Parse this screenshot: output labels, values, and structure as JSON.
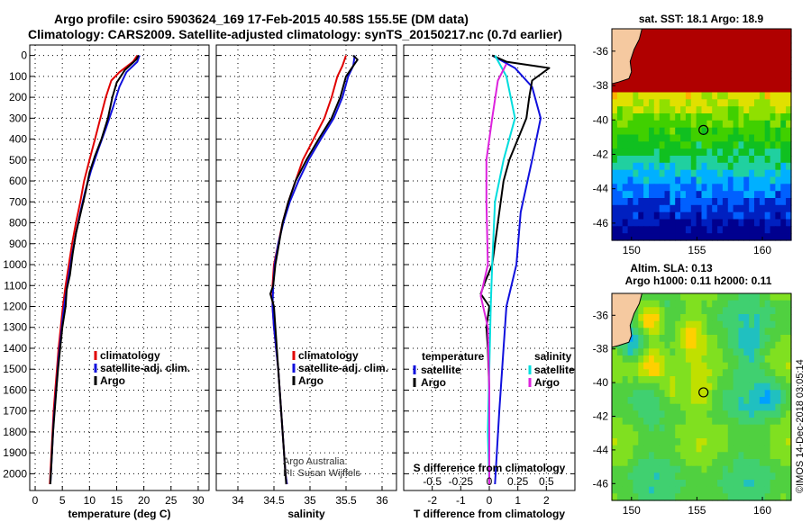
{
  "header": {
    "line1": "Argo profile: csiro 5903624_169 17-Feb-2015 40.58S 155.5E (DM data)",
    "line2": "Climatology: CARS2009. Satellite-adjusted climatology: synTS_20150217.nc (0.7d earlier)"
  },
  "colors": {
    "climatology": "#e00000",
    "satellite": "#1010dd",
    "argo": "#000000",
    "sat_salinity": "#00dddd",
    "argo_salinity": "#dd22dd"
  },
  "chart_data": [
    {
      "type": "line",
      "id": "temperature",
      "xlabel": "temperature (deg C)",
      "ylabel": "",
      "xlim": [
        -1,
        32
      ],
      "ylim": [
        2080,
        0
      ],
      "xticks": [
        0,
        5,
        10,
        15,
        20,
        25,
        30
      ],
      "yticks": [
        0,
        100,
        200,
        300,
        400,
        500,
        600,
        700,
        800,
        900,
        1000,
        1100,
        1200,
        1300,
        1400,
        1500,
        1600,
        1700,
        1800,
        1900,
        2000
      ],
      "grid": true,
      "legend": {
        "placement": "center-right",
        "entries": [
          "climatology",
          "satellite-adj. clim.",
          "Argo"
        ]
      },
      "series": [
        {
          "name": "climatology",
          "color": "#e00000",
          "points": [
            [
              18.8,
              0
            ],
            [
              18,
              30
            ],
            [
              15.5,
              80
            ],
            [
              14,
              120
            ],
            [
              13,
              200
            ],
            [
              12,
              300
            ],
            [
              11,
              400
            ],
            [
              10,
              500
            ],
            [
              9,
              600
            ],
            [
              8.3,
              700
            ],
            [
              7.5,
              800
            ],
            [
              6.8,
              900
            ],
            [
              6.2,
              1000
            ],
            [
              5.6,
              1100
            ],
            [
              5.1,
              1200
            ],
            [
              4.7,
              1300
            ],
            [
              4.3,
              1400
            ],
            [
              4,
              1500
            ],
            [
              3.7,
              1600
            ],
            [
              3.4,
              1700
            ],
            [
              3.2,
              1800
            ],
            [
              3,
              1900
            ],
            [
              2.8,
              2000
            ],
            [
              2.7,
              2050
            ]
          ]
        },
        {
          "name": "satellite-adj. clim.",
          "color": "#1010dd",
          "points": [
            [
              19.2,
              0
            ],
            [
              18.8,
              30
            ],
            [
              16.8,
              80
            ],
            [
              15.5,
              150
            ],
            [
              14.3,
              250
            ],
            [
              13,
              350
            ],
            [
              11.6,
              450
            ],
            [
              10.3,
              550
            ],
            [
              9.2,
              650
            ],
            [
              8.3,
              750
            ],
            [
              7.5,
              850
            ],
            [
              6.8,
              950
            ],
            [
              6.2,
              1050
            ],
            [
              5.6,
              1150
            ],
            [
              5.1,
              1250
            ],
            [
              4.7,
              1350
            ],
            [
              4.3,
              1450
            ],
            [
              4,
              1550
            ],
            [
              3.7,
              1650
            ],
            [
              3.4,
              1750
            ],
            [
              3.2,
              1850
            ],
            [
              3,
              1950
            ],
            [
              2.8,
              2050
            ]
          ]
        },
        {
          "name": "Argo",
          "color": "#000000",
          "points": [
            [
              19,
              0
            ],
            [
              18.6,
              20
            ],
            [
              16.5,
              70
            ],
            [
              15,
              130
            ],
            [
              14.2,
              200
            ],
            [
              13.4,
              300
            ],
            [
              12.2,
              400
            ],
            [
              11,
              480
            ],
            [
              10,
              560
            ],
            [
              9.3,
              650
            ],
            [
              8.4,
              750
            ],
            [
              7.5,
              850
            ],
            [
              6.9,
              950
            ],
            [
              6.4,
              1050
            ],
            [
              5.8,
              1120
            ],
            [
              5.6,
              1200
            ],
            [
              5,
              1300
            ],
            [
              4.6,
              1400
            ],
            [
              4.2,
              1500
            ],
            [
              3.9,
              1600
            ],
            [
              3.6,
              1700
            ],
            [
              3.3,
              1800
            ],
            [
              3.1,
              1900
            ],
            [
              2.9,
              2000
            ],
            [
              2.8,
              2050
            ]
          ]
        }
      ]
    },
    {
      "type": "line",
      "id": "salinity",
      "xlabel": "salinity",
      "ylabel": "",
      "xlim": [
        33.7,
        36.2
      ],
      "ylim": [
        2080,
        0
      ],
      "xticks": [
        34,
        34.5,
        35,
        35.5,
        36
      ],
      "grid": true,
      "legend": {
        "placement": "center-right",
        "entries": [
          "climatology",
          "satellite-adj. clim.",
          "Argo"
        ]
      },
      "annotation": [
        "Argo Australia",
        "PI: Susan Wijffels"
      ],
      "series": [
        {
          "name": "climatology",
          "color": "#e00000",
          "points": [
            [
              35.5,
              0
            ],
            [
              35.45,
              50
            ],
            [
              35.38,
              100
            ],
            [
              35.3,
              200
            ],
            [
              35.2,
              300
            ],
            [
              35.05,
              400
            ],
            [
              34.9,
              500
            ],
            [
              34.8,
              600
            ],
            [
              34.7,
              700
            ],
            [
              34.62,
              800
            ],
            [
              34.56,
              900
            ],
            [
              34.5,
              1000
            ],
            [
              34.48,
              1100
            ],
            [
              34.48,
              1200
            ],
            [
              34.5,
              1300
            ],
            [
              34.53,
              1400
            ],
            [
              34.56,
              1500
            ],
            [
              34.58,
              1600
            ],
            [
              34.6,
              1700
            ],
            [
              34.62,
              1800
            ],
            [
              34.64,
              1900
            ],
            [
              34.66,
              2000
            ],
            [
              34.68,
              2050
            ]
          ]
        },
        {
          "name": "satellite-adj. clim.",
          "color": "#1010dd",
          "points": [
            [
              35.62,
              0
            ],
            [
              35.6,
              50
            ],
            [
              35.53,
              100
            ],
            [
              35.45,
              200
            ],
            [
              35.33,
              300
            ],
            [
              35.15,
              400
            ],
            [
              34.98,
              500
            ],
            [
              34.84,
              600
            ],
            [
              34.72,
              700
            ],
            [
              34.63,
              800
            ],
            [
              34.56,
              900
            ],
            [
              34.51,
              1000
            ],
            [
              34.49,
              1100
            ],
            [
              34.48,
              1200
            ],
            [
              34.5,
              1300
            ],
            [
              34.53,
              1400
            ],
            [
              34.56,
              1500
            ],
            [
              34.58,
              1600
            ],
            [
              34.6,
              1700
            ],
            [
              34.62,
              1800
            ],
            [
              34.64,
              1900
            ],
            [
              34.66,
              2000
            ],
            [
              34.68,
              2050
            ]
          ]
        },
        {
          "name": "Argo",
          "color": "#000000",
          "points": [
            [
              35.6,
              0
            ],
            [
              35.66,
              20
            ],
            [
              35.58,
              60
            ],
            [
              35.5,
              100
            ],
            [
              35.42,
              200
            ],
            [
              35.3,
              300
            ],
            [
              35.12,
              400
            ],
            [
              34.95,
              500
            ],
            [
              34.8,
              600
            ],
            [
              34.7,
              700
            ],
            [
              34.62,
              800
            ],
            [
              34.57,
              900
            ],
            [
              34.52,
              1000
            ],
            [
              34.49,
              1100
            ],
            [
              34.45,
              1140
            ],
            [
              34.5,
              1200
            ],
            [
              34.52,
              1300
            ],
            [
              34.54,
              1400
            ],
            [
              34.56,
              1500
            ],
            [
              34.58,
              1600
            ],
            [
              34.6,
              1700
            ],
            [
              34.62,
              1800
            ],
            [
              34.64,
              1900
            ],
            [
              34.66,
              2000
            ],
            [
              34.67,
              2050
            ]
          ]
        }
      ]
    },
    {
      "type": "line",
      "id": "difference",
      "xlabel": "T difference from climatology",
      "xlabel_top": "S difference from climatology",
      "xlim": [
        -3,
        3
      ],
      "ylim": [
        2080,
        0
      ],
      "xticks": [
        -2,
        -1,
        0,
        1,
        2
      ],
      "top_ticks": [
        "-0.5",
        "-0.25",
        "0",
        "0.25",
        "0.5"
      ],
      "grid": true,
      "legend": {
        "placement": "lower-center",
        "left_header": "temperature",
        "left_entries": [
          "satellite",
          "Argo"
        ],
        "right_header": "salinity",
        "right_entries": [
          "satellite",
          "Argo"
        ]
      },
      "series": [
        {
          "name": "temperature satellite",
          "color": "#1010dd",
          "points": [
            [
              0.1,
              0
            ],
            [
              0.9,
              60
            ],
            [
              1.5,
              150
            ],
            [
              1.8,
              300
            ],
            [
              1.5,
              500
            ],
            [
              1.1,
              750
            ],
            [
              0.95,
              1000
            ],
            [
              0.6,
              1200
            ],
            [
              0.5,
              1400
            ],
            [
              0.35,
              1700
            ],
            [
              0.2,
              2050
            ]
          ]
        },
        {
          "name": "temperature Argo",
          "color": "#000000",
          "points": [
            [
              0.1,
              0
            ],
            [
              0.6,
              30
            ],
            [
              2.1,
              60
            ],
            [
              1.5,
              120
            ],
            [
              1.4,
              200
            ],
            [
              1.3,
              300
            ],
            [
              1.0,
              400
            ],
            [
              0.7,
              500
            ],
            [
              0.5,
              600
            ],
            [
              0.3,
              800
            ],
            [
              0.1,
              1000
            ],
            [
              -0.2,
              1100
            ],
            [
              -0.3,
              1140
            ],
            [
              0,
              1200
            ],
            [
              -0.1,
              1300
            ],
            [
              -0.05,
              1400
            ],
            [
              0,
              1600
            ],
            [
              0,
              1800
            ],
            [
              0,
              2050
            ]
          ]
        },
        {
          "name": "salinity satellite",
          "color": "#00dddd",
          "points": [
            [
              0.2,
              0
            ],
            [
              0.6,
              100
            ],
            [
              0.9,
              300
            ],
            [
              0.5,
              500
            ],
            [
              0.2,
              700
            ],
            [
              0.1,
              1000
            ],
            [
              0.05,
              1200
            ],
            [
              0,
              1500
            ],
            [
              -0.05,
              1800
            ],
            [
              0,
              2050
            ]
          ]
        },
        {
          "name": "salinity Argo",
          "color": "#dd22dd",
          "points": [
            [
              0.6,
              40
            ],
            [
              0.3,
              120
            ],
            [
              0.1,
              300
            ],
            [
              -0.1,
              500
            ],
            [
              -0.1,
              700
            ],
            [
              -0.05,
              1000
            ],
            [
              -0.3,
              1150
            ],
            [
              -0.05,
              1300
            ],
            [
              0,
              1600
            ],
            [
              0,
              2050
            ]
          ]
        }
      ]
    }
  ],
  "maps": [
    {
      "id": "sst-map",
      "title": "sat. SST: 18.1 Argo: 18.9",
      "xticks": [
        150,
        155,
        160
      ],
      "yticks": [
        -36,
        -38,
        -40,
        -42,
        -44,
        -46
      ],
      "xlim": [
        148.5,
        162.2
      ],
      "ylim": [
        -47,
        -34.7
      ],
      "marker": {
        "lon": 155.5,
        "lat": -40.58
      }
    },
    {
      "id": "sla-map",
      "title": "Altim. SLA: 0.13",
      "subtitle": "Argo h1000: 0.11 h2000: 0.11",
      "xticks": [
        150,
        155,
        160
      ],
      "yticks": [
        -36,
        -38,
        -40,
        -42,
        -44,
        -46
      ],
      "xlim": [
        148.5,
        162.2
      ],
      "ylim": [
        -47,
        -34.7
      ],
      "marker": {
        "lon": 155.5,
        "lat": -40.58
      }
    }
  ],
  "credit": "©IMOS 14-Dec-2018 03:05:14"
}
